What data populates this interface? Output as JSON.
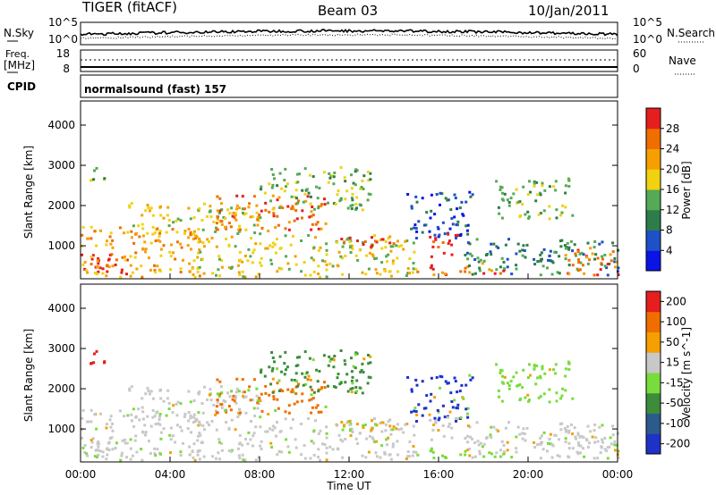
{
  "header": {
    "radar": "TIGER (fitACF)",
    "beam": "Beam 03",
    "date": "10/Jan/2011"
  },
  "noise_panel": {
    "left_label": "N.Sky",
    "right_label": "N.Search",
    "left_ticks": [
      "10^5",
      "10^0"
    ],
    "right_ticks": [
      "10^5",
      "10^0"
    ]
  },
  "freq_panel": {
    "left_label_1": "Freq.",
    "left_label_2": "[MHz]",
    "right_label": "Nave",
    "left_ticks": [
      "18",
      "8"
    ],
    "right_ticks": [
      "60",
      "0"
    ]
  },
  "cpid_panel": {
    "label": "CPID",
    "text": "normalsound (fast) 157"
  },
  "colors": {
    "power_scale": [
      "#0a14e6",
      "#1e50c8",
      "#2d7d4b",
      "#55aa55",
      "#f0d210",
      "#f5a000",
      "#f06e00",
      "#e61e1e"
    ],
    "velocity_scale": [
      "#1e32c8",
      "#2d5a8c",
      "#3c8c3c",
      "#78dc3c",
      "#c8c8c8",
      "#f5a000",
      "#f06e00",
      "#e61e1e"
    ],
    "frame": "#000000"
  },
  "chart_data": [
    {
      "type": "heatmap",
      "name": "power",
      "xlabel": "",
      "ylabel": "Slant Range [km]",
      "y_ticks": [
        "1000",
        "2000",
        "3000",
        "4000"
      ],
      "ylim": [
        180,
        4600
      ],
      "colorbar_label": "Power [dB]",
      "colorbar_ticks": [
        "4",
        "8",
        "12",
        "16",
        "20",
        "24",
        "28"
      ],
      "colorbar_range": [
        0,
        32
      ]
    },
    {
      "type": "heatmap",
      "name": "velocity",
      "xlabel": "Time UT",
      "ylabel": "Slant Range [km]",
      "x_ticks": [
        "00:00",
        "04:00",
        "08:00",
        "12:00",
        "16:00",
        "20:00",
        "00:00"
      ],
      "y_ticks": [
        "1000",
        "2000",
        "3000",
        "4000"
      ],
      "ylim": [
        180,
        4600
      ],
      "colorbar_label": "Velocity [m s^-1]",
      "colorbar_ticks": [
        "200",
        "100",
        "50",
        "15",
        "-15",
        "-50",
        "-100",
        "-200"
      ]
    }
  ]
}
